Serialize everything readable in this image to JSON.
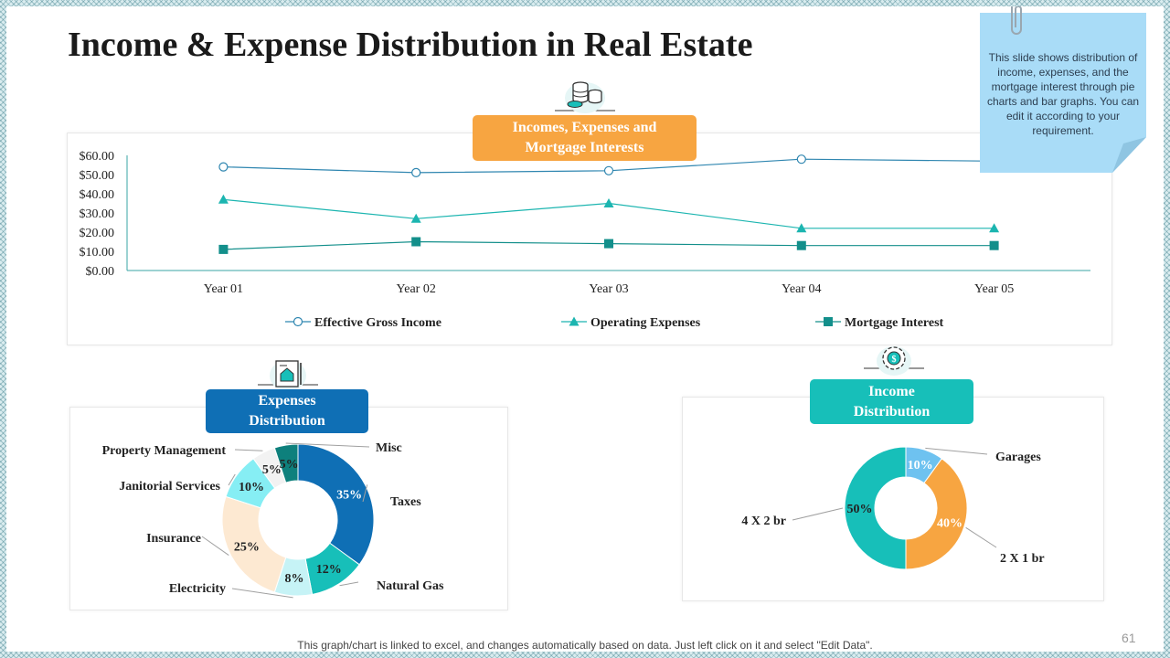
{
  "title": "Income & Expense Distribution in Real Estate",
  "note": "This slide shows distribution of income, expenses, and the mortgage interest through pie charts and bar graphs. You can edit it according to your requirement.",
  "footer": "This graph/chart is linked to excel, and changes automatically based on data. Just left click on it and select \"Edit Data\".",
  "page_number": "61",
  "colors": {
    "orange": "#f7a541",
    "blue": "#0f6fb5",
    "teal": "#17bfb9",
    "line_income": "#2f86b0",
    "line_expenses": "#1cb5b0",
    "line_mortgage": "#138f8b"
  },
  "icons": {
    "line_panel": "coins-icon",
    "expenses_panel": "property-document-icon",
    "income_panel": "gear-dollar-icon"
  },
  "chart_data": [
    {
      "type": "line",
      "title": "Incomes, Expenses and Mortgage Interests",
      "categories": [
        "Year 01",
        "Year 02",
        "Year 03",
        "Year 04",
        "Year 05"
      ],
      "y_ticks": [
        "$0.00",
        "$10.00",
        "$20.00",
        "$30.00",
        "$40.00",
        "$50.00",
        "$60.00"
      ],
      "ylim": [
        0,
        60
      ],
      "grid": false,
      "legend": "bottom",
      "series": [
        {
          "name": "Effective Gross Income",
          "values": [
            54,
            51,
            52,
            58,
            57
          ],
          "marker": "circle"
        },
        {
          "name": "Operating Expenses",
          "values": [
            37,
            27,
            35,
            22,
            22
          ],
          "marker": "triangle"
        },
        {
          "name": "Mortgage Interest",
          "values": [
            11,
            15,
            14,
            13,
            13
          ],
          "marker": "square"
        }
      ]
    },
    {
      "type": "pie",
      "title": "Expenses Distribution",
      "donut": true,
      "slices": [
        {
          "label": "Taxes",
          "value": 35,
          "display": "35%",
          "color": "#0f6fb5",
          "text_color": "#ffffff"
        },
        {
          "label": "Natural Gas",
          "value": 12,
          "display": "12%",
          "color": "#17bfb9",
          "text_color": "#222222"
        },
        {
          "label": "Electricity",
          "value": 8,
          "display": "8%",
          "color": "#c6f3f6",
          "text_color": "#222222"
        },
        {
          "label": "Insurance",
          "value": 25,
          "display": "25%",
          "color": "#fde9d2",
          "text_color": "#222222"
        },
        {
          "label": "Janitorial Services",
          "value": 10,
          "display": "10%",
          "color": "#86eef4",
          "text_color": "#222222"
        },
        {
          "label": "Property Management",
          "value": 5,
          "display": "5%",
          "color": "#f2f2f2",
          "text_color": "#222222"
        },
        {
          "label": "Misc",
          "value": 5,
          "display": "5%",
          "color": "#0e807c",
          "text_color": "#222222"
        }
      ]
    },
    {
      "type": "pie",
      "title": "Income Distribution",
      "donut": true,
      "slices": [
        {
          "label": "Garages",
          "value": 10,
          "display": "10%",
          "color": "#6ec2f0",
          "text_color": "#ffffff"
        },
        {
          "label": "2 X 1 br",
          "value": 40,
          "display": "40%",
          "color": "#f7a541",
          "text_color": "#ffffff"
        },
        {
          "label": "4 X 2 br",
          "value": 50,
          "display": "50%",
          "color": "#17bfb9",
          "text_color": "#222222"
        }
      ]
    }
  ]
}
